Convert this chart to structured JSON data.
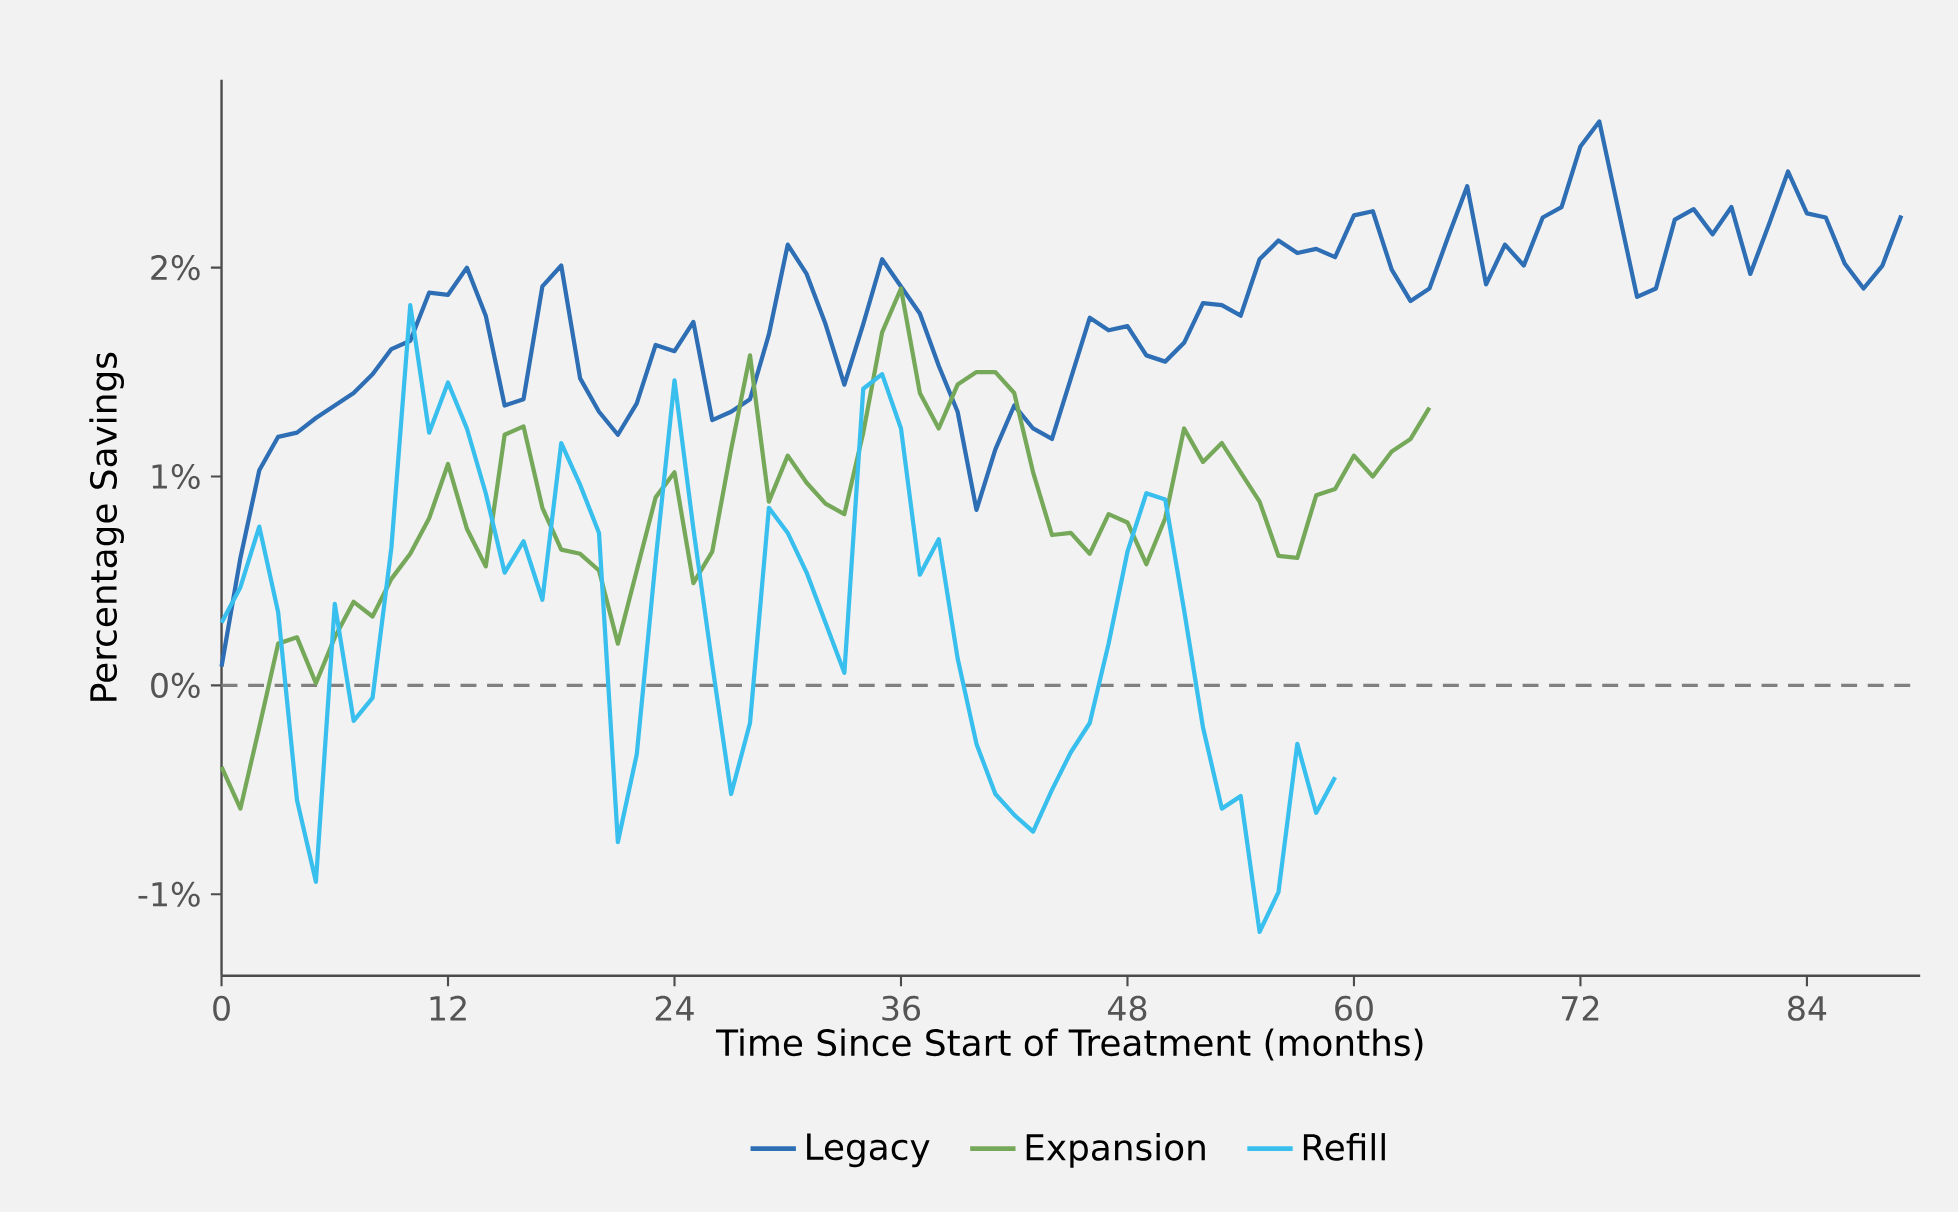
{
  "chart_data": {
    "type": "line",
    "xlabel": "Time Since Start of Treatment (months)",
    "ylabel": "Percentage Savings",
    "xlim": [
      0,
      90
    ],
    "ylim": [
      -1.39,
      2.9
    ],
    "xticks": [
      0,
      12,
      24,
      36,
      48,
      60,
      72,
      84
    ],
    "yticks": [
      {
        "value": -1,
        "label": "-1%"
      },
      {
        "value": 0,
        "label": "0%"
      },
      {
        "value": 1,
        "label": "1%"
      },
      {
        "value": 2,
        "label": "2%"
      }
    ],
    "grid": false,
    "legend": "bottom",
    "line_style": "solid",
    "marker": "none",
    "ref_lines": [
      {
        "axis": "y",
        "value": 0,
        "color": "#808080",
        "line_style": "dashed"
      }
    ],
    "series": [
      {
        "name": "Legacy",
        "color": "#2e6eb4",
        "x": [
          0,
          1,
          2,
          3,
          4,
          5,
          6,
          7,
          8,
          9,
          10,
          11,
          12,
          13,
          14,
          15,
          16,
          17,
          18,
          19,
          20,
          21,
          22,
          23,
          24,
          25,
          26,
          27,
          28,
          29,
          30,
          31,
          32,
          33,
          34,
          35,
          36,
          37,
          38,
          39,
          40,
          41,
          42,
          43,
          44,
          45,
          46,
          47,
          48,
          49,
          50,
          51,
          52,
          53,
          54,
          55,
          56,
          57,
          58,
          59,
          60,
          61,
          62,
          63,
          64,
          65,
          66,
          67,
          68,
          69,
          70,
          71,
          72,
          73,
          74,
          75,
          76,
          77,
          78,
          79,
          80,
          81,
          82,
          83,
          84,
          85,
          86,
          87,
          88,
          89
        ],
        "values": [
          0.09,
          0.61,
          1.03,
          1.19,
          1.21,
          1.28,
          1.34,
          1.4,
          1.49,
          1.61,
          1.65,
          1.88,
          1.87,
          2.0,
          1.77,
          1.34,
          1.37,
          1.91,
          2.01,
          1.47,
          1.31,
          1.2,
          1.35,
          1.63,
          1.6,
          1.74,
          1.27,
          1.31,
          1.37,
          1.68,
          2.11,
          1.97,
          1.73,
          1.44,
          1.73,
          2.04,
          1.91,
          1.78,
          1.53,
          1.31,
          0.84,
          1.13,
          1.34,
          1.23,
          1.18,
          1.47,
          1.76,
          1.7,
          1.72,
          1.58,
          1.55,
          1.64,
          1.83,
          1.82,
          1.77,
          2.04,
          2.13,
          2.07,
          2.09,
          2.05,
          2.25,
          2.27,
          1.99,
          1.84,
          1.9,
          2.15,
          2.39,
          1.92,
          2.11,
          2.01,
          2.24,
          2.29,
          2.58,
          2.7,
          2.28,
          1.86,
          1.9,
          2.23,
          2.28,
          2.16,
          2.29,
          1.97,
          2.21,
          2.46,
          2.26,
          2.24,
          2.02,
          1.9,
          2.01,
          2.25
        ]
      },
      {
        "name": "Expansion",
        "color": "#76a85a",
        "x": [
          0,
          1,
          2,
          3,
          4,
          5,
          6,
          7,
          8,
          9,
          10,
          11,
          12,
          13,
          14,
          15,
          16,
          17,
          18,
          19,
          20,
          21,
          22,
          23,
          24,
          25,
          26,
          27,
          28,
          29,
          30,
          31,
          32,
          33,
          34,
          35,
          36,
          37,
          38,
          39,
          40,
          41,
          42,
          43,
          44,
          45,
          46,
          47,
          48,
          49,
          50,
          51,
          52,
          53,
          54,
          55,
          56,
          57,
          58,
          59,
          60,
          61,
          62,
          63,
          64
        ],
        "values": [
          -0.39,
          -0.59,
          -0.2,
          0.2,
          0.23,
          0.01,
          0.23,
          0.4,
          0.33,
          0.51,
          0.63,
          0.8,
          1.06,
          0.75,
          0.57,
          1.2,
          1.24,
          0.85,
          0.65,
          0.63,
          0.55,
          0.2,
          0.55,
          0.9,
          1.02,
          0.49,
          0.64,
          1.13,
          1.58,
          0.88,
          1.1,
          0.97,
          0.87,
          0.82,
          1.21,
          1.69,
          1.9,
          1.4,
          1.23,
          1.44,
          1.5,
          1.5,
          1.4,
          1.02,
          0.72,
          0.73,
          0.63,
          0.82,
          0.78,
          0.58,
          0.8,
          1.23,
          1.07,
          1.16,
          1.02,
          0.88,
          0.62,
          0.61,
          0.91,
          0.94,
          1.1,
          1.0,
          1.12,
          1.18,
          1.33
        ]
      },
      {
        "name": "Refill",
        "color": "#38bfee",
        "x": [
          0,
          1,
          2,
          3,
          4,
          5,
          6,
          7,
          8,
          9,
          10,
          11,
          12,
          13,
          14,
          15,
          16,
          17,
          18,
          19,
          20,
          21,
          22,
          23,
          24,
          25,
          26,
          27,
          28,
          29,
          30,
          31,
          32,
          33,
          34,
          35,
          36,
          37,
          38,
          39,
          40,
          41,
          42,
          43,
          44,
          45,
          46,
          47,
          48,
          49,
          50,
          51,
          52,
          53,
          54,
          55,
          56,
          57,
          58,
          59
        ],
        "values": [
          0.3,
          0.47,
          0.76,
          0.35,
          -0.55,
          -0.94,
          0.39,
          -0.17,
          -0.06,
          0.66,
          1.82,
          1.21,
          1.45,
          1.23,
          0.92,
          0.54,
          0.69,
          0.41,
          1.16,
          0.96,
          0.73,
          -0.75,
          -0.33,
          0.6,
          1.46,
          0.75,
          0.1,
          -0.52,
          -0.18,
          0.85,
          0.73,
          0.54,
          0.3,
          0.06,
          1.42,
          1.49,
          1.23,
          0.53,
          0.7,
          0.13,
          -0.28,
          -0.52,
          -0.62,
          -0.7,
          -0.5,
          -0.32,
          -0.18,
          0.2,
          0.64,
          0.92,
          0.89,
          0.36,
          -0.2,
          -0.59,
          -0.53,
          -1.18,
          -0.99,
          -0.28,
          -0.61,
          -0.44
        ]
      }
    ]
  }
}
